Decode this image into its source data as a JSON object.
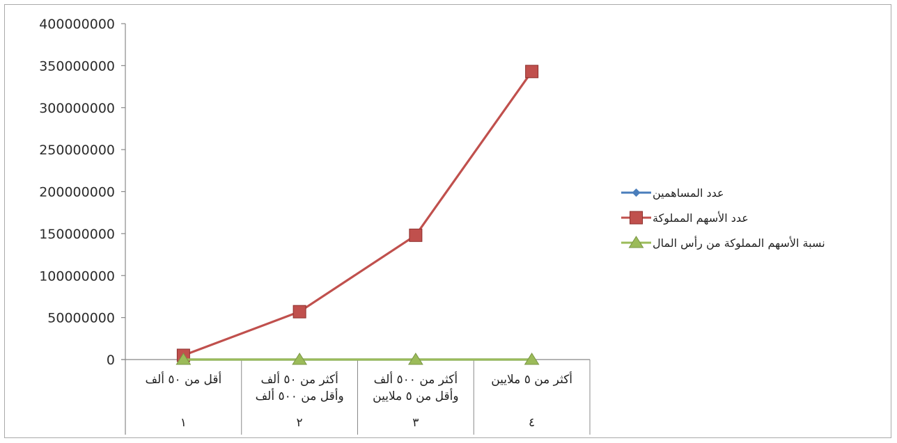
{
  "chart_data": {
    "type": "line",
    "ylim": [
      0,
      400000000
    ],
    "yticks": [
      0,
      50000000,
      100000000,
      150000000,
      200000000,
      250000000,
      300000000,
      350000000,
      400000000
    ],
    "categories": [
      {
        "lines": [
          "أقل من ٥٠ ألف"
        ],
        "number": "١"
      },
      {
        "lines": [
          "أكثر من ٥٠ ألف",
          "وأقل من ٥٠٠ ألف"
        ],
        "number": "٢"
      },
      {
        "lines": [
          "أكثر من ٥٠٠ ألف",
          "وأقل من ٥ ملايين"
        ],
        "number": "٣"
      },
      {
        "lines": [
          "أكثر من ٥ ملايين"
        ],
        "number": "٤"
      }
    ],
    "series": [
      {
        "name": "عدد المساهمين",
        "values": [
          300,
          200,
          100,
          20
        ],
        "color": "#4a7ebb",
        "marker": "diamond"
      },
      {
        "name": "عدد الأسهم المملوكة",
        "values": [
          5000000,
          57000000,
          148000000,
          343000000
        ],
        "color": "#c0504d",
        "marker": "square"
      },
      {
        "name": "نسبة الأسهم المملوكة من رأس المال",
        "values": [
          1,
          10,
          26,
          61
        ],
        "color": "#9bbb59",
        "marker": "triangle"
      }
    ],
    "legend_position": "right",
    "grid": false
  }
}
